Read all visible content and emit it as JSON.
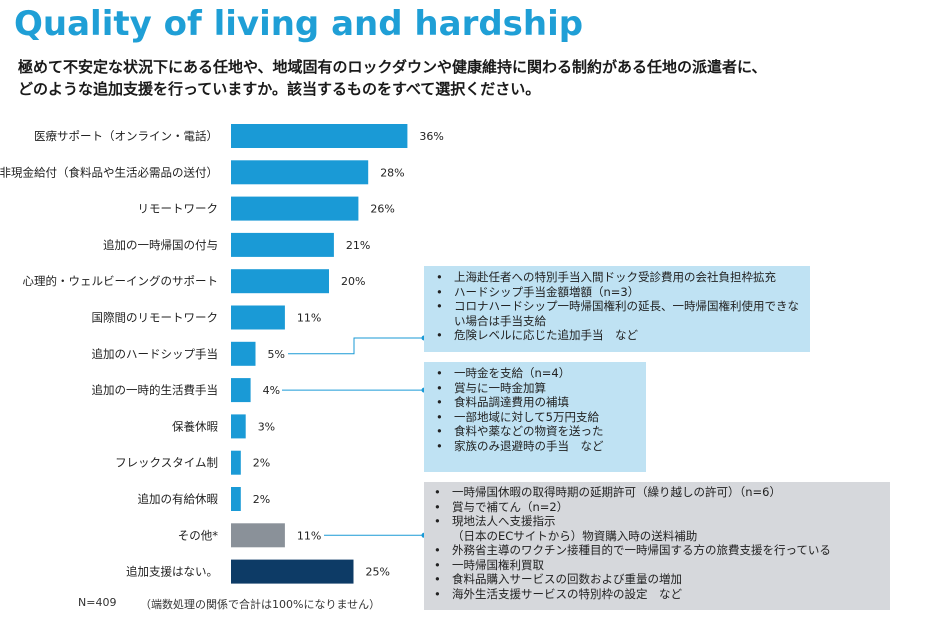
{
  "title": "Quality of living and hardship",
  "question": {
    "line1": "極めて不安定な状況下にある任地や、地域固有のロックダウンや健康維持に関わる制約がある任地の派遣者に、",
    "line2": "どのような追加支援を行っていますか。該当するものをすべて選択ください。"
  },
  "colors": {
    "title": "#1f9fd6",
    "bar_blue": "#1a9ad6",
    "bar_gray": "#8a9199",
    "bar_navy": "#0d3b66",
    "note_blue": "#bfe2f3",
    "note_gray": "#d6d8dc",
    "connector": "#1a9ad6"
  },
  "chart_data": {
    "type": "bar",
    "orientation": "horizontal",
    "categories": [
      "医療サポート（オンライン・電話）",
      "非現金給付（食料品や生活必需品の送付）",
      "リモートワーク",
      "追加の一時帰国の付与",
      "心理的・ウェルビーイングのサポート",
      "国際間のリモートワーク",
      "追加のハードシップ手当",
      "追加の一時的生活費手当",
      "保養休暇",
      "フレックスタイム制",
      "追加の有給休暇",
      "その他*",
      "追加支援はない。"
    ],
    "values": [
      36,
      28,
      26,
      21,
      20,
      11,
      5,
      4,
      3,
      2,
      2,
      11,
      25
    ],
    "value_labels": [
      "36%",
      "28%",
      "26%",
      "21%",
      "20%",
      "11%",
      "5%",
      "4%",
      "3%",
      "2%",
      "2%",
      "11%",
      "25%"
    ],
    "bar_colors": [
      "blue",
      "blue",
      "blue",
      "blue",
      "blue",
      "blue",
      "blue",
      "blue",
      "blue",
      "blue",
      "blue",
      "gray",
      "navy"
    ],
    "xlim": [
      0,
      40
    ],
    "grid": false
  },
  "footnote": {
    "n": "N=409",
    "rounding": "（端数処理の関係で合計は100%になりません）"
  },
  "notes": {
    "hardship": [
      "上海赴任者への特別手当入間ドック受診費用の会社負担枠拡充",
      "ハードシップ手当金額増額（n=3）",
      "コロナハードシップ一時帰国権利の延長、一時帰国権利使用できな",
      "い場合は手当支給",
      "危険レベルに応じた追加手当　など"
    ],
    "living_cost": [
      "一時金を支給（n=4）",
      "賞与に一時金加算",
      "食料品調達費用の補填",
      "一部地域に対して5万円支給",
      "食料や薬などの物資を送った",
      "家族のみ退避時の手当　など"
    ],
    "other": [
      "一時帰国休暇の取得時期の延期許可（繰り越しの許可）（n=6）",
      "賞与で補てん（n=2）",
      "現地法人へ支援指示",
      "（日本のECサイトから）物資購入時の送料補助",
      "外務省主導のワクチン接種目的で一時帰国する方の旅費支援を行っている",
      "一時帰国権利買取",
      "食料品購入サービスの回数および重量の増加",
      "海外生活支援サービスの特別枠の設定　など"
    ]
  }
}
